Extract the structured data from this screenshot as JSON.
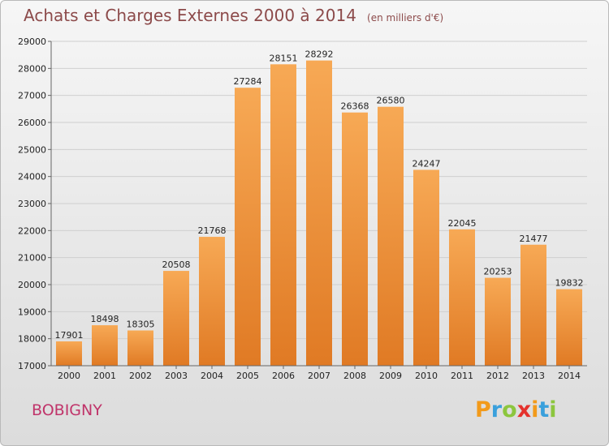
{
  "title": "Achats et Charges Externes 2000 à 2014",
  "unit": "(en milliers d'€)",
  "city": "BOBIGNY",
  "logo": {
    "letters": [
      "P",
      "r",
      "o",
      "x",
      "i",
      "t",
      "i"
    ],
    "colors": [
      "#f29a1a",
      "#3aa0dc",
      "#8cc63e",
      "#e5322d",
      "#f29a1a",
      "#3aa0dc",
      "#8cc63e"
    ]
  },
  "colors": {
    "bar_light": "#f7a955",
    "bar_dark": "#e07a24",
    "grid": "#cfcfcf",
    "title": "#8c4a4a",
    "city": "#c0346a"
  },
  "chart_data": {
    "type": "bar",
    "categories": [
      "2000",
      "2001",
      "2002",
      "2003",
      "2004",
      "2005",
      "2006",
      "2007",
      "2008",
      "2009",
      "2010",
      "2011",
      "2012",
      "2013",
      "2014"
    ],
    "values": [
      17901,
      18498,
      18305,
      20508,
      21768,
      27284,
      28151,
      28292,
      26368,
      26580,
      24247,
      22045,
      20253,
      21477,
      19832
    ],
    "ylim": [
      17000,
      29000
    ],
    "yticks": [
      17000,
      18000,
      19000,
      20000,
      21000,
      22000,
      23000,
      24000,
      25000,
      26000,
      27000,
      28000,
      29000
    ],
    "grid": true
  }
}
